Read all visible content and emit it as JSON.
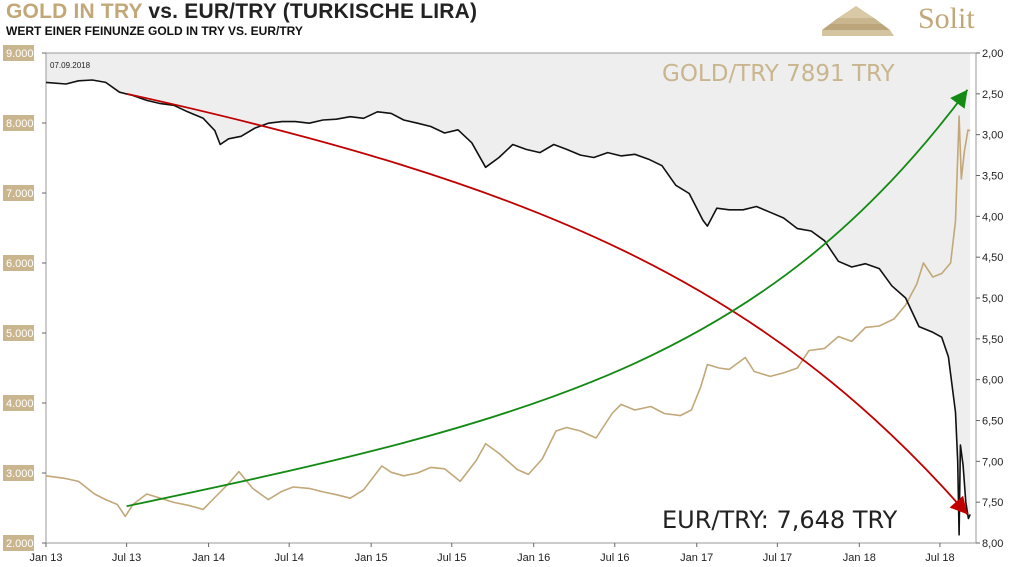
{
  "header": {
    "title_gold": "GOLD IN TRY",
    "title_rest": "vs. EUR/TRY (TURKISCHE LIRA)",
    "subtitle": "WERT EINER FEINUNZE GOLD IN TRY VS. EUR/TRY",
    "logo_text": "Solit"
  },
  "chart_data": {
    "type": "line",
    "date_stamp": "07.09.2018",
    "gold_label": "GOLD/TRY 7891 TRY",
    "eur_label": "EUR/TRY: 7,648 TRY",
    "x_ticks": [
      "Jan 13",
      "Jul 13",
      "Jan 14",
      "Jul 14",
      "Jan 15",
      "Jul 15",
      "Jan 16",
      "Jul 16",
      "Jan 17",
      "Jul 17",
      "Jan 18",
      "Jul 18"
    ],
    "y_left": {
      "ticks": [
        "2.000",
        "3.000",
        "4.000",
        "5.000",
        "6.000",
        "7.000",
        "8.000",
        "9.000"
      ],
      "range": [
        2000,
        9000
      ]
    },
    "y_right": {
      "ticks": [
        "2,00",
        "2,50",
        "3,00",
        "3,50",
        "4,00",
        "4,50",
        "5,00",
        "5,50",
        "6,00",
        "6,50",
        "7,00",
        "7,50",
        "8,00"
      ],
      "range": [
        2.0,
        8.0
      ],
      "inverted": true
    },
    "colors": {
      "gold": "#c2a878",
      "eur": "#111111",
      "red_arrow": "#c00000",
      "green_arrow": "#138a13",
      "shade": "#eeeeee",
      "tick_box": "#c9b58e"
    },
    "series": [
      {
        "name": "GOLD/TRY",
        "axis": "left",
        "points": [
          [
            "2013-01-01",
            2960
          ],
          [
            "2013-02-15",
            2920
          ],
          [
            "2013-03-15",
            2880
          ],
          [
            "2013-04-20",
            2700
          ],
          [
            "2013-05-15",
            2620
          ],
          [
            "2013-06-10",
            2550
          ],
          [
            "2013-06-28",
            2380
          ],
          [
            "2013-07-15",
            2550
          ],
          [
            "2013-08-15",
            2700
          ],
          [
            "2013-09-10",
            2650
          ],
          [
            "2013-10-15",
            2580
          ],
          [
            "2013-11-15",
            2540
          ],
          [
            "2013-12-20",
            2480
          ],
          [
            "2014-01-15",
            2650
          ],
          [
            "2014-02-15",
            2850
          ],
          [
            "2014-03-10",
            3020
          ],
          [
            "2014-04-10",
            2780
          ],
          [
            "2014-05-15",
            2620
          ],
          [
            "2014-06-15",
            2740
          ],
          [
            "2014-07-10",
            2800
          ],
          [
            "2014-08-15",
            2780
          ],
          [
            "2014-09-15",
            2730
          ],
          [
            "2014-10-15",
            2690
          ],
          [
            "2014-11-15",
            2640
          ],
          [
            "2014-12-15",
            2760
          ],
          [
            "2015-01-25",
            3100
          ],
          [
            "2015-02-15",
            3010
          ],
          [
            "2015-03-15",
            2960
          ],
          [
            "2015-04-15",
            3000
          ],
          [
            "2015-05-15",
            3080
          ],
          [
            "2015-06-15",
            3060
          ],
          [
            "2015-07-20",
            2880
          ],
          [
            "2015-08-25",
            3180
          ],
          [
            "2015-09-15",
            3420
          ],
          [
            "2015-10-15",
            3280
          ],
          [
            "2015-11-25",
            3050
          ],
          [
            "2015-12-20",
            2980
          ],
          [
            "2016-01-20",
            3200
          ],
          [
            "2016-02-20",
            3600
          ],
          [
            "2016-03-15",
            3650
          ],
          [
            "2016-04-15",
            3600
          ],
          [
            "2016-05-20",
            3500
          ],
          [
            "2016-06-25",
            3850
          ],
          [
            "2016-07-15",
            3980
          ],
          [
            "2016-08-15",
            3900
          ],
          [
            "2016-09-20",
            3950
          ],
          [
            "2016-10-20",
            3850
          ],
          [
            "2016-11-25",
            3820
          ],
          [
            "2016-12-20",
            3900
          ],
          [
            "2017-01-10",
            4230
          ],
          [
            "2017-01-25",
            4550
          ],
          [
            "2017-02-20",
            4500
          ],
          [
            "2017-03-15",
            4480
          ],
          [
            "2017-04-20",
            4650
          ],
          [
            "2017-05-10",
            4450
          ],
          [
            "2017-06-15",
            4380
          ],
          [
            "2017-07-15",
            4430
          ],
          [
            "2017-08-15",
            4500
          ],
          [
            "2017-09-10",
            4750
          ],
          [
            "2017-10-15",
            4780
          ],
          [
            "2017-11-15",
            4950
          ],
          [
            "2017-12-15",
            4880
          ],
          [
            "2018-01-15",
            5080
          ],
          [
            "2018-02-15",
            5100
          ],
          [
            "2018-03-20",
            5200
          ],
          [
            "2018-04-15",
            5400
          ],
          [
            "2018-05-10",
            5700
          ],
          [
            "2018-05-25",
            6000
          ],
          [
            "2018-06-15",
            5800
          ],
          [
            "2018-07-05",
            5850
          ],
          [
            "2018-07-25",
            6000
          ],
          [
            "2018-08-05",
            6600
          ],
          [
            "2018-08-13",
            8100
          ],
          [
            "2018-08-18",
            7200
          ],
          [
            "2018-08-25",
            7600
          ],
          [
            "2018-09-02",
            7900
          ],
          [
            "2018-09-07",
            7891
          ]
        ]
      },
      {
        "name": "EUR/TRY",
        "axis": "right",
        "points": [
          [
            "2013-01-01",
            2.36
          ],
          [
            "2013-02-15",
            2.38
          ],
          [
            "2013-03-15",
            2.34
          ],
          [
            "2013-04-15",
            2.33
          ],
          [
            "2013-05-15",
            2.36
          ],
          [
            "2013-06-15",
            2.48
          ],
          [
            "2013-07-15",
            2.52
          ],
          [
            "2013-08-15",
            2.58
          ],
          [
            "2013-09-15",
            2.62
          ],
          [
            "2013-10-15",
            2.64
          ],
          [
            "2013-11-15",
            2.72
          ],
          [
            "2013-12-20",
            2.8
          ],
          [
            "2014-01-15",
            2.95
          ],
          [
            "2014-01-27",
            3.12
          ],
          [
            "2014-02-15",
            3.05
          ],
          [
            "2014-03-15",
            3.02
          ],
          [
            "2014-04-15",
            2.92
          ],
          [
            "2014-05-15",
            2.86
          ],
          [
            "2014-06-15",
            2.84
          ],
          [
            "2014-07-15",
            2.84
          ],
          [
            "2014-08-15",
            2.86
          ],
          [
            "2014-09-15",
            2.82
          ],
          [
            "2014-10-15",
            2.81
          ],
          [
            "2014-11-15",
            2.78
          ],
          [
            "2014-12-15",
            2.8
          ],
          [
            "2015-01-15",
            2.72
          ],
          [
            "2015-02-15",
            2.74
          ],
          [
            "2015-03-15",
            2.82
          ],
          [
            "2015-04-15",
            2.86
          ],
          [
            "2015-05-15",
            2.9
          ],
          [
            "2015-06-15",
            2.98
          ],
          [
            "2015-07-15",
            2.94
          ],
          [
            "2015-08-15",
            3.1
          ],
          [
            "2015-09-15",
            3.4
          ],
          [
            "2015-10-15",
            3.28
          ],
          [
            "2015-11-15",
            3.12
          ],
          [
            "2015-12-15",
            3.18
          ],
          [
            "2016-01-15",
            3.22
          ],
          [
            "2016-02-15",
            3.12
          ],
          [
            "2016-03-15",
            3.18
          ],
          [
            "2016-04-15",
            3.25
          ],
          [
            "2016-05-15",
            3.28
          ],
          [
            "2016-06-15",
            3.22
          ],
          [
            "2016-07-15",
            3.26
          ],
          [
            "2016-08-15",
            3.24
          ],
          [
            "2016-09-15",
            3.3
          ],
          [
            "2016-10-15",
            3.38
          ],
          [
            "2016-11-15",
            3.62
          ],
          [
            "2016-12-15",
            3.72
          ],
          [
            "2017-01-15",
            4.05
          ],
          [
            "2017-01-25",
            4.12
          ],
          [
            "2017-02-15",
            3.9
          ],
          [
            "2017-03-15",
            3.92
          ],
          [
            "2017-04-15",
            3.92
          ],
          [
            "2017-05-15",
            3.88
          ],
          [
            "2017-06-15",
            3.95
          ],
          [
            "2017-07-15",
            4.02
          ],
          [
            "2017-08-15",
            4.15
          ],
          [
            "2017-09-15",
            4.18
          ],
          [
            "2017-10-15",
            4.3
          ],
          [
            "2017-11-15",
            4.55
          ],
          [
            "2017-12-15",
            4.62
          ],
          [
            "2018-01-15",
            4.58
          ],
          [
            "2018-02-15",
            4.64
          ],
          [
            "2018-03-15",
            4.85
          ],
          [
            "2018-04-15",
            5.0
          ],
          [
            "2018-05-15",
            5.35
          ],
          [
            "2018-06-15",
            5.42
          ],
          [
            "2018-07-05",
            5.48
          ],
          [
            "2018-07-20",
            5.72
          ],
          [
            "2018-08-05",
            6.4
          ],
          [
            "2018-08-10",
            7.0
          ],
          [
            "2018-08-13",
            7.9
          ],
          [
            "2018-08-16",
            6.8
          ],
          [
            "2018-08-22",
            7.05
          ],
          [
            "2018-08-28",
            7.5
          ],
          [
            "2018-09-03",
            7.7
          ],
          [
            "2018-09-07",
            7.65
          ]
        ]
      }
    ],
    "trend_arrows": [
      {
        "name": "red-trend-arrow",
        "color": "red",
        "desc": "EUR/TRY trend",
        "points": [
          [
            "2013-07-01",
            2.5
          ],
          [
            "2016-01-01",
            3.6
          ],
          [
            "2017-06-01",
            4.8
          ],
          [
            "2018-09-01",
            7.65
          ]
        ]
      },
      {
        "name": "green-trend-arrow",
        "color": "green",
        "desc": "Gold trend",
        "points": [
          [
            "2013-07-01",
            7.55
          ],
          [
            "2016-01-01",
            6.5
          ],
          [
            "2017-06-01",
            5.8
          ],
          [
            "2018-09-01",
            2.45
          ]
        ]
      }
    ]
  }
}
